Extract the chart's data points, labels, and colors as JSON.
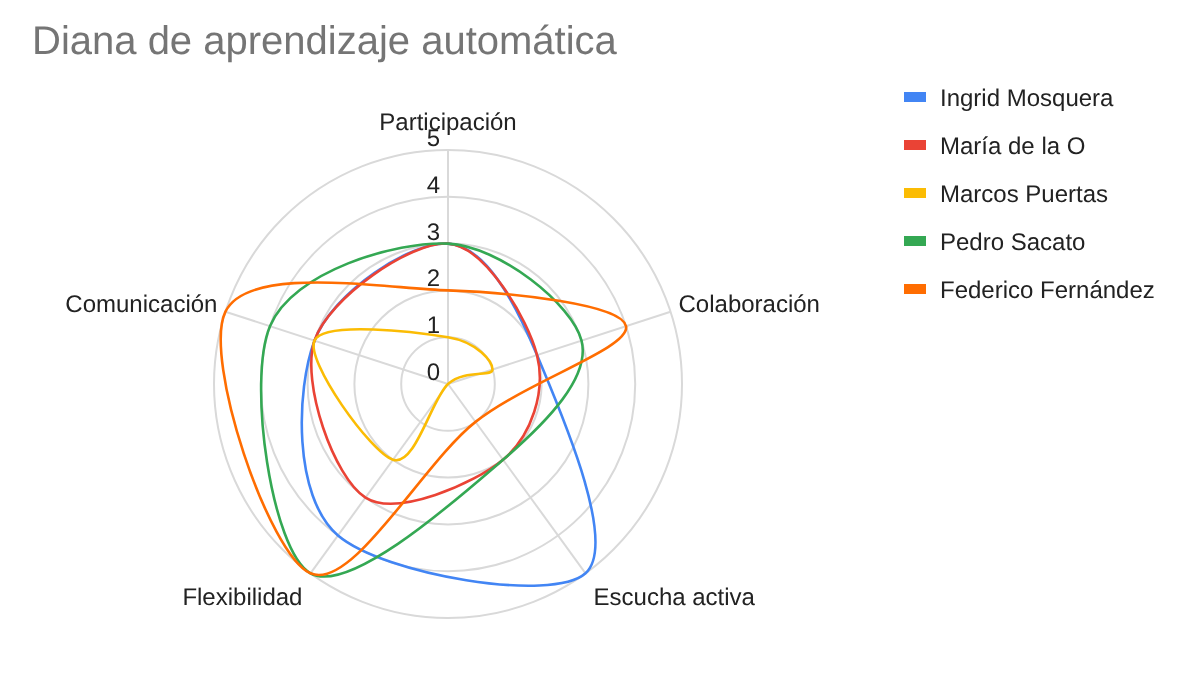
{
  "chart_data": {
    "type": "radar",
    "title": "Diana de aprendizaje automática",
    "categories": [
      "Participación",
      "Colaboración",
      "Escucha activa",
      "Flexibilidad",
      "Comunicación"
    ],
    "series": [
      {
        "name": "Ingrid Mosquera",
        "color": "#4285f4",
        "values": [
          3,
          2,
          5,
          4,
          3
        ]
      },
      {
        "name": "María de la O",
        "color": "#ea4335",
        "values": [
          3,
          2,
          2,
          3,
          3
        ]
      },
      {
        "name": "Marcos Puertas",
        "color": "#fbbc04",
        "values": [
          1,
          1,
          0,
          2,
          3
        ]
      },
      {
        "name": "Pedro Sacato",
        "color": "#34a853",
        "values": [
          3,
          3,
          2,
          5,
          4
        ]
      },
      {
        "name": "Federico Fernández",
        "color": "#ff6d01",
        "values": [
          2,
          4,
          1,
          5,
          5
        ]
      }
    ],
    "ylim": [
      0,
      5
    ],
    "yticks": [
      0,
      1,
      2,
      3,
      4,
      5
    ],
    "grid": true,
    "legend": "right"
  }
}
